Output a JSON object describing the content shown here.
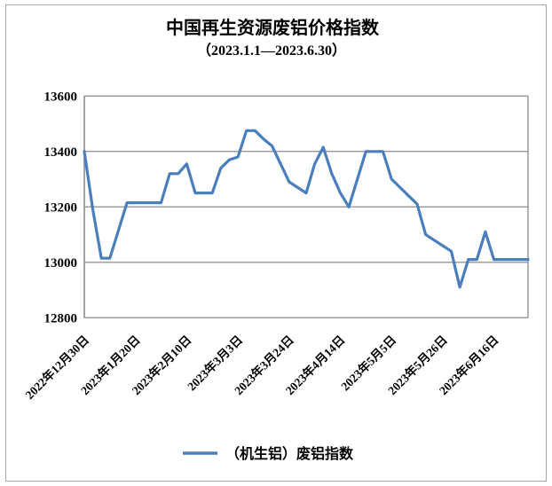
{
  "chart_data": {
    "type": "line",
    "title": "中国再生资源废铝价格指数",
    "subtitle": "（2023.1.1—2023.6.30）",
    "legend_position": "bottom",
    "grid": "horizontal",
    "ylim": [
      12800,
      13600
    ],
    "y_ticks": [
      12800,
      13000,
      13200,
      13400,
      13600
    ],
    "x_tick_labels": [
      "2022年12月30日",
      "2023年1月20日",
      "2023年2月10日",
      "2023年3月3日",
      "2023年3月24日",
      "2023年4月14日",
      "2023年5月5日",
      "2023年5月26日",
      "2023年6月16日"
    ],
    "x_tick_indices": [
      0,
      6,
      12,
      18,
      24,
      30,
      36,
      42,
      48
    ],
    "colors": {
      "line": "#4a7ebc",
      "gridline": "#8c8c8c",
      "axis": "#8c8c8c",
      "frame_border": "#a6a6a6",
      "text": "#000000"
    },
    "series": [
      {
        "name": "（机生铝）废铝指数",
        "color": "#4a7ebc",
        "x": [
          "2022年12月30日",
          "2023年1月3日",
          "2023年1月6日",
          "2023年1月10日",
          "2023年1月13日",
          "2023年1月17日",
          "2023年1月20日",
          "2023年1月24日",
          "2023年1月27日",
          "2023年1月31日",
          "2023年2月3日",
          "2023年2月7日",
          "2023年2月10日",
          "2023年2月14日",
          "2023年2月17日",
          "2023年2月21日",
          "2023年2月24日",
          "2023年2月28日",
          "2023年3月3日",
          "2023年3月7日",
          "2023年3月10日",
          "2023年3月14日",
          "2023年3月17日",
          "2023年3月21日",
          "2023年3月24日",
          "2023年3月28日",
          "2023年3月31日",
          "2023年4月4日",
          "2023年4月7日",
          "2023年4月11日",
          "2023年4月14日",
          "2023年4月18日",
          "2023年4月21日",
          "2023年4月25日",
          "2023年4月28日",
          "2023年5月2日",
          "2023年5月5日",
          "2023年5月9日",
          "2023年5月12日",
          "2023年5月16日",
          "2023年5月19日",
          "2023年5月23日",
          "2023年5月26日",
          "2023年5月30日",
          "2023年6月2日",
          "2023年6月6日",
          "2023年6月9日",
          "2023年6月13日",
          "2023年6月16日",
          "2023年6月20日",
          "2023年6月23日",
          "2023年6月27日",
          "2023年6月30日"
        ],
        "values": [
          13400,
          13190,
          13015,
          13015,
          13115,
          13215,
          13215,
          13215,
          13215,
          13215,
          13320,
          13320,
          13355,
          13250,
          13250,
          13250,
          13340,
          13370,
          13380,
          13475,
          13475,
          13445,
          13420,
          13355,
          13290,
          13270,
          13250,
          13355,
          13415,
          13320,
          13250,
          13200,
          13300,
          13400,
          13400,
          13400,
          13300,
          13270,
          13240,
          13210,
          13100,
          13080,
          13060,
          13040,
          12910,
          13010,
          13010,
          13110,
          13010,
          13010,
          13010,
          13010,
          13010
        ]
      }
    ]
  }
}
